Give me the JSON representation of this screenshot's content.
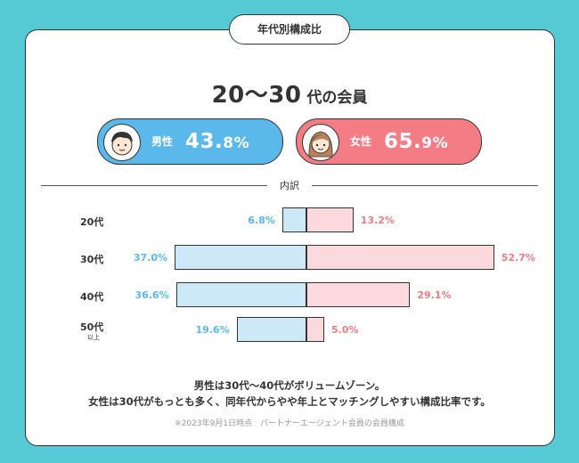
{
  "tab_label": "年代別構成比",
  "heading": {
    "main": "20〜30",
    "suffix": " 代の会員"
  },
  "male": {
    "label": "男性",
    "pct_main": "43.",
    "pct_dec": "8%"
  },
  "female": {
    "label": "女性",
    "pct_main": "65.",
    "pct_dec": "9%"
  },
  "breakdown_label": "内訳",
  "chart_data": {
    "type": "bar",
    "orientation": "horizontal-diverging",
    "categories": [
      "20代",
      "30代",
      "40代",
      "50代 以上"
    ],
    "category_labels": [
      "20代",
      "30代",
      "40代",
      "50代"
    ],
    "category_sublabels": [
      "",
      "",
      "",
      "以上"
    ],
    "series": [
      {
        "name": "男性",
        "values": [
          6.8,
          37.0,
          36.6,
          19.6
        ],
        "labels": [
          "6.8%",
          "37.0%",
          "36.6%",
          "19.6%"
        ],
        "color": "#cde8f7"
      },
      {
        "name": "女性",
        "values": [
          13.2,
          52.7,
          29.1,
          5.0
        ],
        "labels": [
          "13.2%",
          "52.7%",
          "29.1%",
          "5.0%"
        ],
        "color": "#fcd9dc"
      }
    ],
    "unit": "%"
  },
  "footer": {
    "line1": "男性は30代〜40代がボリュームゾーン。",
    "line2": "女性は30代がもっとも多く、同年代からやや年上とマッチングしやすい構成比率です。"
  },
  "note": "※2023年9月1日時点　パートナーエージェント会員の会員構成",
  "colors": {
    "background": "#55c9d4",
    "male": "#5ab8eb",
    "female": "#f47c85"
  }
}
